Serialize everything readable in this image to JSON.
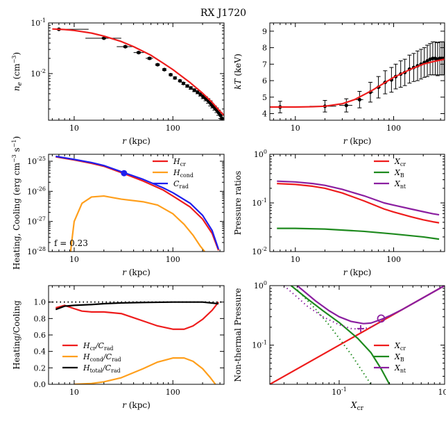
{
  "figure_title": "RX J1720",
  "colors": {
    "red": "#ee1c1c",
    "orange": "#ff9f1c",
    "blue": "#1f1fee",
    "green": "#1e8a1e",
    "purple": "#8b1fa0",
    "black": "#000000"
  },
  "chart_data": [
    {
      "panel": "ne",
      "type": "scatter",
      "xscale": "log",
      "yscale": "log",
      "xlim": [
        5.5,
        330
      ],
      "ylim": [
        0.0012,
        0.1
      ],
      "xlabel": "r (kpc)",
      "ylabel": "n_e (cm^-3)",
      "xticks": [
        {
          "v": 10,
          "label": "10"
        },
        {
          "v": 100,
          "label": "100"
        }
      ],
      "yticks": [
        {
          "v": 0.01,
          "label": "10^-2"
        },
        {
          "v": 0.1,
          "label": "10^-1"
        }
      ],
      "series": [
        {
          "name": "data",
          "style": "errorbar",
          "color": "black",
          "x": [
            7,
            20,
            33,
            45,
            58,
            70,
            82,
            95,
            105,
            118,
            128,
            140,
            152,
            165,
            178,
            190,
            202,
            215,
            228,
            240,
            252,
            265,
            278,
            290,
            303,
            315
          ],
          "y": [
            0.075,
            0.05,
            0.034,
            0.026,
            0.02,
            0.015,
            0.012,
            0.0095,
            0.0082,
            0.0072,
            0.0064,
            0.0057,
            0.0052,
            0.0047,
            0.0043,
            0.0039,
            0.0035,
            0.0032,
            0.0029,
            0.0026,
            0.0023,
            0.0021,
            0.0019,
            0.0017,
            0.0015,
            0.0013
          ],
          "xerr_lo": [
            0.3,
            7,
            6,
            5,
            5,
            4,
            4,
            4,
            3,
            3,
            3,
            3,
            3,
            3,
            3,
            3,
            3,
            3,
            3,
            3,
            3,
            3,
            3,
            3,
            3,
            3
          ],
          "xerr_hi": [
            7,
            10,
            8,
            6,
            5,
            4,
            4,
            4,
            3,
            3,
            3,
            3,
            3,
            3,
            3,
            3,
            3,
            3,
            3,
            3,
            3,
            3,
            3,
            3,
            3,
            3
          ],
          "yerr": [
            0.002,
            0.0015,
            0.0012,
            0.001,
            0.0008,
            0.0006,
            0.0005,
            0.0004,
            0.0004,
            0.0003,
            0.0003,
            0.0003,
            0.0003,
            0.0003,
            0.0003,
            0.0003,
            0.0003,
            0.0003,
            0.0003,
            0.0003,
            0.0002,
            0.0002,
            0.0002,
            0.0002,
            0.0002,
            0.0002
          ]
        },
        {
          "name": "fit",
          "style": "line",
          "color": "red",
          "x": [
            6,
            8,
            10,
            15,
            20,
            30,
            40,
            60,
            80,
            100,
            150,
            200,
            250,
            300,
            330
          ],
          "y": [
            0.076,
            0.074,
            0.071,
            0.063,
            0.055,
            0.043,
            0.034,
            0.023,
            0.016,
            0.012,
            0.0066,
            0.0041,
            0.0027,
            0.0018,
            0.0015
          ]
        }
      ]
    },
    {
      "panel": "kT",
      "type": "scatter",
      "xscale": "log",
      "yscale": "linear",
      "xlim": [
        5.5,
        330
      ],
      "ylim": [
        3.6,
        9.5
      ],
      "xlabel": "r (kpc)",
      "ylabel": "kT (keV)",
      "xticks": [
        {
          "v": 10,
          "label": "10"
        },
        {
          "v": 100,
          "label": "100"
        }
      ],
      "yticks": [
        {
          "v": 4,
          "label": "4"
        },
        {
          "v": 5,
          "label": "5"
        },
        {
          "v": 6,
          "label": "6"
        },
        {
          "v": 7,
          "label": "7"
        },
        {
          "v": 8,
          "label": "8"
        },
        {
          "v": 9,
          "label": "9"
        }
      ],
      "series": [
        {
          "name": "data",
          "style": "errorbar",
          "color": "black",
          "x": [
            7,
            20,
            33,
            45,
            58,
            70,
            82,
            95,
            105,
            118,
            130,
            145,
            160,
            175,
            190,
            205,
            220,
            235,
            250,
            265,
            280,
            295,
            310,
            325
          ],
          "y": [
            4.4,
            4.45,
            4.5,
            4.85,
            5.3,
            5.6,
            5.9,
            6.05,
            6.25,
            6.4,
            6.5,
            6.7,
            6.8,
            6.9,
            7.0,
            7.1,
            7.2,
            7.3,
            7.35,
            7.35,
            7.3,
            7.35,
            7.35,
            7.35
          ],
          "xerr_lo": [
            0.3,
            6,
            5,
            4,
            4,
            4,
            4,
            3,
            3,
            3,
            3,
            3,
            3,
            3,
            3,
            3,
            3,
            3,
            3,
            3,
            3,
            3,
            3,
            3
          ],
          "xerr_hi": [
            6,
            6,
            5,
            4,
            4,
            4,
            4,
            3,
            3,
            3,
            3,
            3,
            3,
            3,
            3,
            3,
            3,
            3,
            3,
            3,
            3,
            3,
            3,
            3
          ],
          "yerr": [
            0.35,
            0.35,
            0.4,
            0.5,
            0.6,
            0.65,
            0.7,
            0.75,
            0.75,
            0.8,
            0.8,
            0.85,
            0.85,
            0.9,
            0.9,
            0.9,
            0.95,
            0.95,
            1.0,
            1.0,
            1.0,
            1.0,
            1.0,
            1.0
          ]
        },
        {
          "name": "fit",
          "style": "line",
          "color": "red",
          "x": [
            5.5,
            8,
            10,
            15,
            20,
            30,
            40,
            60,
            80,
            100,
            150,
            200,
            250,
            300,
            330
          ],
          "y": [
            4.4,
            4.4,
            4.4,
            4.42,
            4.45,
            4.6,
            4.85,
            5.4,
            5.85,
            6.2,
            6.7,
            7.0,
            7.15,
            7.25,
            7.3
          ]
        }
      ]
    },
    {
      "panel": "heating_cooling",
      "type": "line",
      "xscale": "log",
      "yscale": "log",
      "xlim": [
        5.5,
        330
      ],
      "ylim": [
        1e-28,
        1.7e-25
      ],
      "xlabel": "r (kpc)",
      "ylabel": "Heating, Cooling (erg cm^-3 s^-1)",
      "xticks": [
        {
          "v": 10,
          "label": "10"
        },
        {
          "v": 100,
          "label": "100"
        }
      ],
      "yticks": [
        {
          "v": 1e-28,
          "label": "10^-28"
        },
        {
          "v": 1e-27,
          "label": "10^-27"
        },
        {
          "v": 1e-26,
          "label": "10^-26"
        },
        {
          "v": 1e-25,
          "label": "10^-25"
        }
      ],
      "annotation": "f = 0.23",
      "marker": {
        "x": 32,
        "y": 4e-26,
        "color": "blue"
      },
      "series": [
        {
          "name": "H_cr",
          "label_main": "H",
          "label_sub": "cr",
          "color": "red",
          "x": [
            6.5,
            10,
            15,
            20,
            30,
            50,
            80,
            100,
            150,
            200,
            250,
            290
          ],
          "y": [
            1.4e-25,
            1.1e-25,
            8.5e-26,
            6.8e-26,
            4.2e-26,
            2.2e-26,
            1.1e-26,
            7e-27,
            3e-27,
            1.2e-27,
            4e-28,
            1.1e-28
          ]
        },
        {
          "name": "H_cond",
          "label_main": "H",
          "label_sub": "cond",
          "color": "orange",
          "x": [
            9.2,
            9.5,
            10,
            12,
            15,
            20,
            30,
            50,
            70,
            100,
            130,
            160,
            190,
            210
          ],
          "y": [
            1e-28,
            2.5e-28,
            1e-27,
            4e-27,
            6.5e-27,
            7e-27,
            5.5e-27,
            4.5e-27,
            3.5e-27,
            1.8e-27,
            8e-28,
            3.5e-28,
            1.5e-28,
            1e-28
          ]
        },
        {
          "name": "C_rad",
          "label_main": "C",
          "label_sub": "rad",
          "color": "blue",
          "x": [
            6.5,
            10,
            15,
            20,
            30,
            50,
            80,
            100,
            150,
            200,
            250,
            290
          ],
          "y": [
            1.45e-25,
            1.15e-25,
            9e-26,
            7.2e-26,
            4.5e-26,
            2.5e-26,
            1.3e-26,
            9e-27,
            4e-27,
            1.6e-27,
            5e-28,
            1.2e-28
          ]
        }
      ]
    },
    {
      "panel": "pressure_ratios",
      "type": "line",
      "xscale": "log",
      "yscale": "log",
      "xlim": [
        5.5,
        330
      ],
      "ylim": [
        0.01,
        1
      ],
      "xlabel": "r (kpc)",
      "ylabel": "Pressure ratios",
      "xticks": [
        {
          "v": 10,
          "label": "10"
        },
        {
          "v": 100,
          "label": "100"
        }
      ],
      "yticks": [
        {
          "v": 0.01,
          "label": "10^-2"
        },
        {
          "v": 0.1,
          "label": "10^-1"
        },
        {
          "v": 1,
          "label": "10^0"
        }
      ],
      "series": [
        {
          "name": "X_cr",
          "label_main": "X",
          "label_sub": "cr",
          "color": "red",
          "x": [
            6.5,
            10,
            15,
            20,
            30,
            50,
            80,
            100,
            150,
            200,
            250,
            290
          ],
          "y": [
            0.25,
            0.24,
            0.22,
            0.2,
            0.16,
            0.11,
            0.075,
            0.065,
            0.052,
            0.045,
            0.041,
            0.039
          ]
        },
        {
          "name": "X_B",
          "label_main": "X",
          "label_sub": "B",
          "color": "green",
          "x": [
            6.5,
            10,
            20,
            50,
            100,
            200,
            290
          ],
          "y": [
            0.03,
            0.03,
            0.029,
            0.026,
            0.023,
            0.02,
            0.018
          ]
        },
        {
          "name": "X_nt",
          "label_main": "X",
          "label_sub": "nt",
          "color": "purple",
          "x": [
            6.5,
            10,
            15,
            20,
            30,
            50,
            80,
            100,
            150,
            200,
            250,
            290
          ],
          "y": [
            0.28,
            0.27,
            0.25,
            0.23,
            0.19,
            0.14,
            0.1,
            0.09,
            0.075,
            0.066,
            0.06,
            0.057
          ]
        }
      ]
    },
    {
      "panel": "heating_over_cooling",
      "type": "line",
      "xscale": "log",
      "yscale": "linear",
      "xlim": [
        5.5,
        330
      ],
      "ylim": [
        0,
        1.2
      ],
      "xlabel": "r (kpc)",
      "ylabel": "Heating/Cooling",
      "xticks": [
        {
          "v": 10,
          "label": "10"
        },
        {
          "v": 100,
          "label": "100"
        }
      ],
      "yticks": [
        {
          "v": 0,
          "label": "0.0"
        },
        {
          "v": 0.2,
          "label": "0.2"
        },
        {
          "v": 0.4,
          "label": "0.4"
        },
        {
          "v": 0.6,
          "label": "0.6"
        },
        {
          "v": 0.8,
          "label": "0.8"
        },
        {
          "v": 1.0,
          "label": "1.0"
        }
      ],
      "series": [
        {
          "name": "H_cr/C_rad",
          "label_main": "H",
          "label_sub": "cr",
          "label_tail": "/C",
          "label_tail_sub": "rad",
          "color": "red",
          "x": [
            6.5,
            8,
            10,
            12,
            15,
            20,
            30,
            40,
            50,
            70,
            100,
            130,
            160,
            200,
            250,
            290
          ],
          "y": [
            0.93,
            0.96,
            0.92,
            0.89,
            0.88,
            0.88,
            0.86,
            0.81,
            0.77,
            0.71,
            0.67,
            0.67,
            0.71,
            0.79,
            0.9,
            1.0
          ]
        },
        {
          "name": "H_cond/C_rad",
          "label_main": "H",
          "label_sub": "cond",
          "label_tail": "/C",
          "label_tail_sub": "rad",
          "color": "orange",
          "x": [
            10,
            15,
            20,
            30,
            50,
            70,
            100,
            130,
            160,
            200,
            240,
            270
          ],
          "y": [
            0.0,
            0.01,
            0.03,
            0.08,
            0.19,
            0.27,
            0.32,
            0.32,
            0.28,
            0.19,
            0.08,
            0.0
          ]
        },
        {
          "name": "H_total/C_rad",
          "label_main": "H",
          "label_sub": "total",
          "label_tail": "/C",
          "label_tail_sub": "rad",
          "color": "black",
          "x": [
            6.5,
            8,
            10,
            15,
            20,
            30,
            50,
            100,
            200,
            290
          ],
          "y": [
            0.91,
            0.95,
            0.96,
            0.97,
            0.98,
            0.99,
            0.995,
            1.0,
            1.0,
            0.98
          ]
        },
        {
          "name": "unity",
          "style": "dotted",
          "color": "black",
          "x": [
            5.5,
            330
          ],
          "y": [
            1.0,
            1.0
          ]
        }
      ]
    },
    {
      "panel": "nonthermal_pressure",
      "type": "line",
      "xscale": "log",
      "yscale": "log",
      "xlim": [
        0.022,
        1
      ],
      "ylim": [
        0.022,
        1
      ],
      "xlabel": "X_cr",
      "ylabel": "Non-thermal Pressure",
      "xticks": [
        {
          "v": 0.1,
          "label": "10^-1"
        },
        {
          "v": 1,
          "label": "10^0"
        }
      ],
      "yticks": [
        {
          "v": 0.1,
          "label": "10^-1"
        },
        {
          "v": 1,
          "label": "10^0"
        }
      ],
      "markers": [
        {
          "shape": "circle",
          "x": 0.25,
          "y": 0.28,
          "color": "purple"
        },
        {
          "shape": "plus",
          "x": 0.16,
          "y": 0.19,
          "color": "purple"
        }
      ],
      "series": [
        {
          "name": "X_cr",
          "label_main": "X",
          "label_sub": "cr",
          "color": "red",
          "x": [
            0.022,
            1
          ],
          "y": [
            0.022,
            1
          ]
        },
        {
          "name": "X_B",
          "label_main": "X",
          "label_sub": "B",
          "color": "green",
          "x": [
            0.035,
            0.05,
            0.07,
            0.1,
            0.15,
            0.2,
            0.25,
            0.3
          ],
          "y": [
            1.0,
            0.6,
            0.38,
            0.24,
            0.13,
            0.075,
            0.04,
            0.022
          ]
        },
        {
          "name": "X_nt",
          "label_main": "X",
          "label_sub": "nt",
          "color": "purple",
          "x": [
            0.04,
            0.06,
            0.08,
            0.1,
            0.13,
            0.17,
            0.2,
            0.25,
            0.3,
            0.4,
            0.6,
            1.0
          ],
          "y": [
            1.0,
            0.55,
            0.38,
            0.3,
            0.25,
            0.23,
            0.235,
            0.27,
            0.31,
            0.4,
            0.6,
            1.0
          ]
        },
        {
          "name": "X_B_dotted",
          "style": "dotted",
          "color": "green",
          "x": [
            0.04,
            0.06,
            0.08,
            0.1,
            0.13,
            0.16,
            0.2
          ],
          "y": [
            0.85,
            0.4,
            0.22,
            0.13,
            0.07,
            0.04,
            0.022
          ]
        },
        {
          "name": "X_nt_dotted",
          "style": "dotted",
          "color": "purple",
          "x": [
            0.03,
            0.05,
            0.07,
            0.1,
            0.13,
            0.16,
            0.2,
            0.25
          ],
          "y": [
            1.0,
            0.45,
            0.3,
            0.22,
            0.19,
            0.185,
            0.2,
            0.25
          ]
        }
      ]
    }
  ]
}
